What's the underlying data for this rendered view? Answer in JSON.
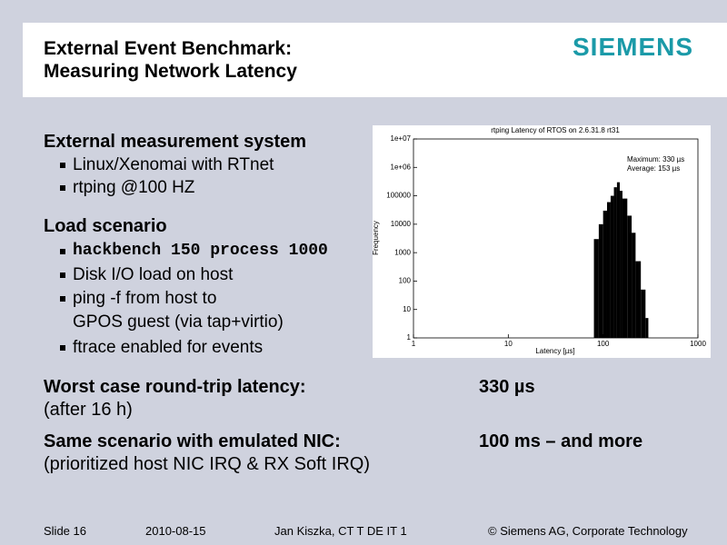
{
  "header": {
    "title_lines": [
      "External Event Benchmark:",
      "Measuring Network Latency"
    ],
    "logo": "SIEMENS"
  },
  "body": {
    "sections": [
      {
        "heading": "External measurement system",
        "bullets": [
          "Linux/Xenomai with RTnet",
          "rtping @100 HZ"
        ]
      },
      {
        "heading": "Load scenario",
        "bullets": [
          "hackbench 150 process 1000",
          "Disk I/O load on host",
          "ping -f from host to",
          "GPOS guest (via tap+virtio)",
          "ftrace enabled for events"
        ]
      }
    ]
  },
  "results": [
    {
      "label": "Worst case round-trip latency:",
      "note": "(after 16 h)",
      "value": "330 µs"
    },
    {
      "label": "Same scenario with emulated NIC:",
      "note": "(prioritized host NIC IRQ & RX Soft IRQ)",
      "value": "100 ms – and more"
    }
  ],
  "footer": {
    "slide": "Slide 16",
    "date": "2010-08-15",
    "author": "Jan Kiszka, CT T DE IT 1",
    "copyright": "© Siemens AG, Corporate Technology"
  },
  "chart_data": {
    "type": "histogram",
    "title": "rtping Latency of RTOS on 2.6.31.8 rt31",
    "xlabel": "Latency [µs]",
    "ylabel": "Frequency",
    "annotations": [
      "Maximum: 330 µs",
      "Average: 153 µs"
    ],
    "xscale": "log",
    "yscale": "log",
    "xlim": [
      1,
      1000
    ],
    "xticks": [
      1,
      10,
      100,
      1000
    ],
    "ylim": [
      1,
      10000000
    ],
    "yticks": [
      1,
      10,
      100,
      1000,
      10000,
      100000,
      {
        "value": 1000000,
        "label": "1e+06"
      },
      {
        "value": 10000000,
        "label": "1e+07"
      }
    ],
    "bins": [
      80,
      90,
      100,
      110,
      120,
      130,
      140,
      150,
      160,
      180,
      200,
      220,
      250,
      280,
      300,
      330
    ],
    "counts": [
      3000,
      10000,
      30000,
      60000,
      100000,
      200000,
      300000,
      150000,
      80000,
      20000,
      5000,
      500,
      50,
      5,
      1
    ],
    "color": "#000000"
  }
}
